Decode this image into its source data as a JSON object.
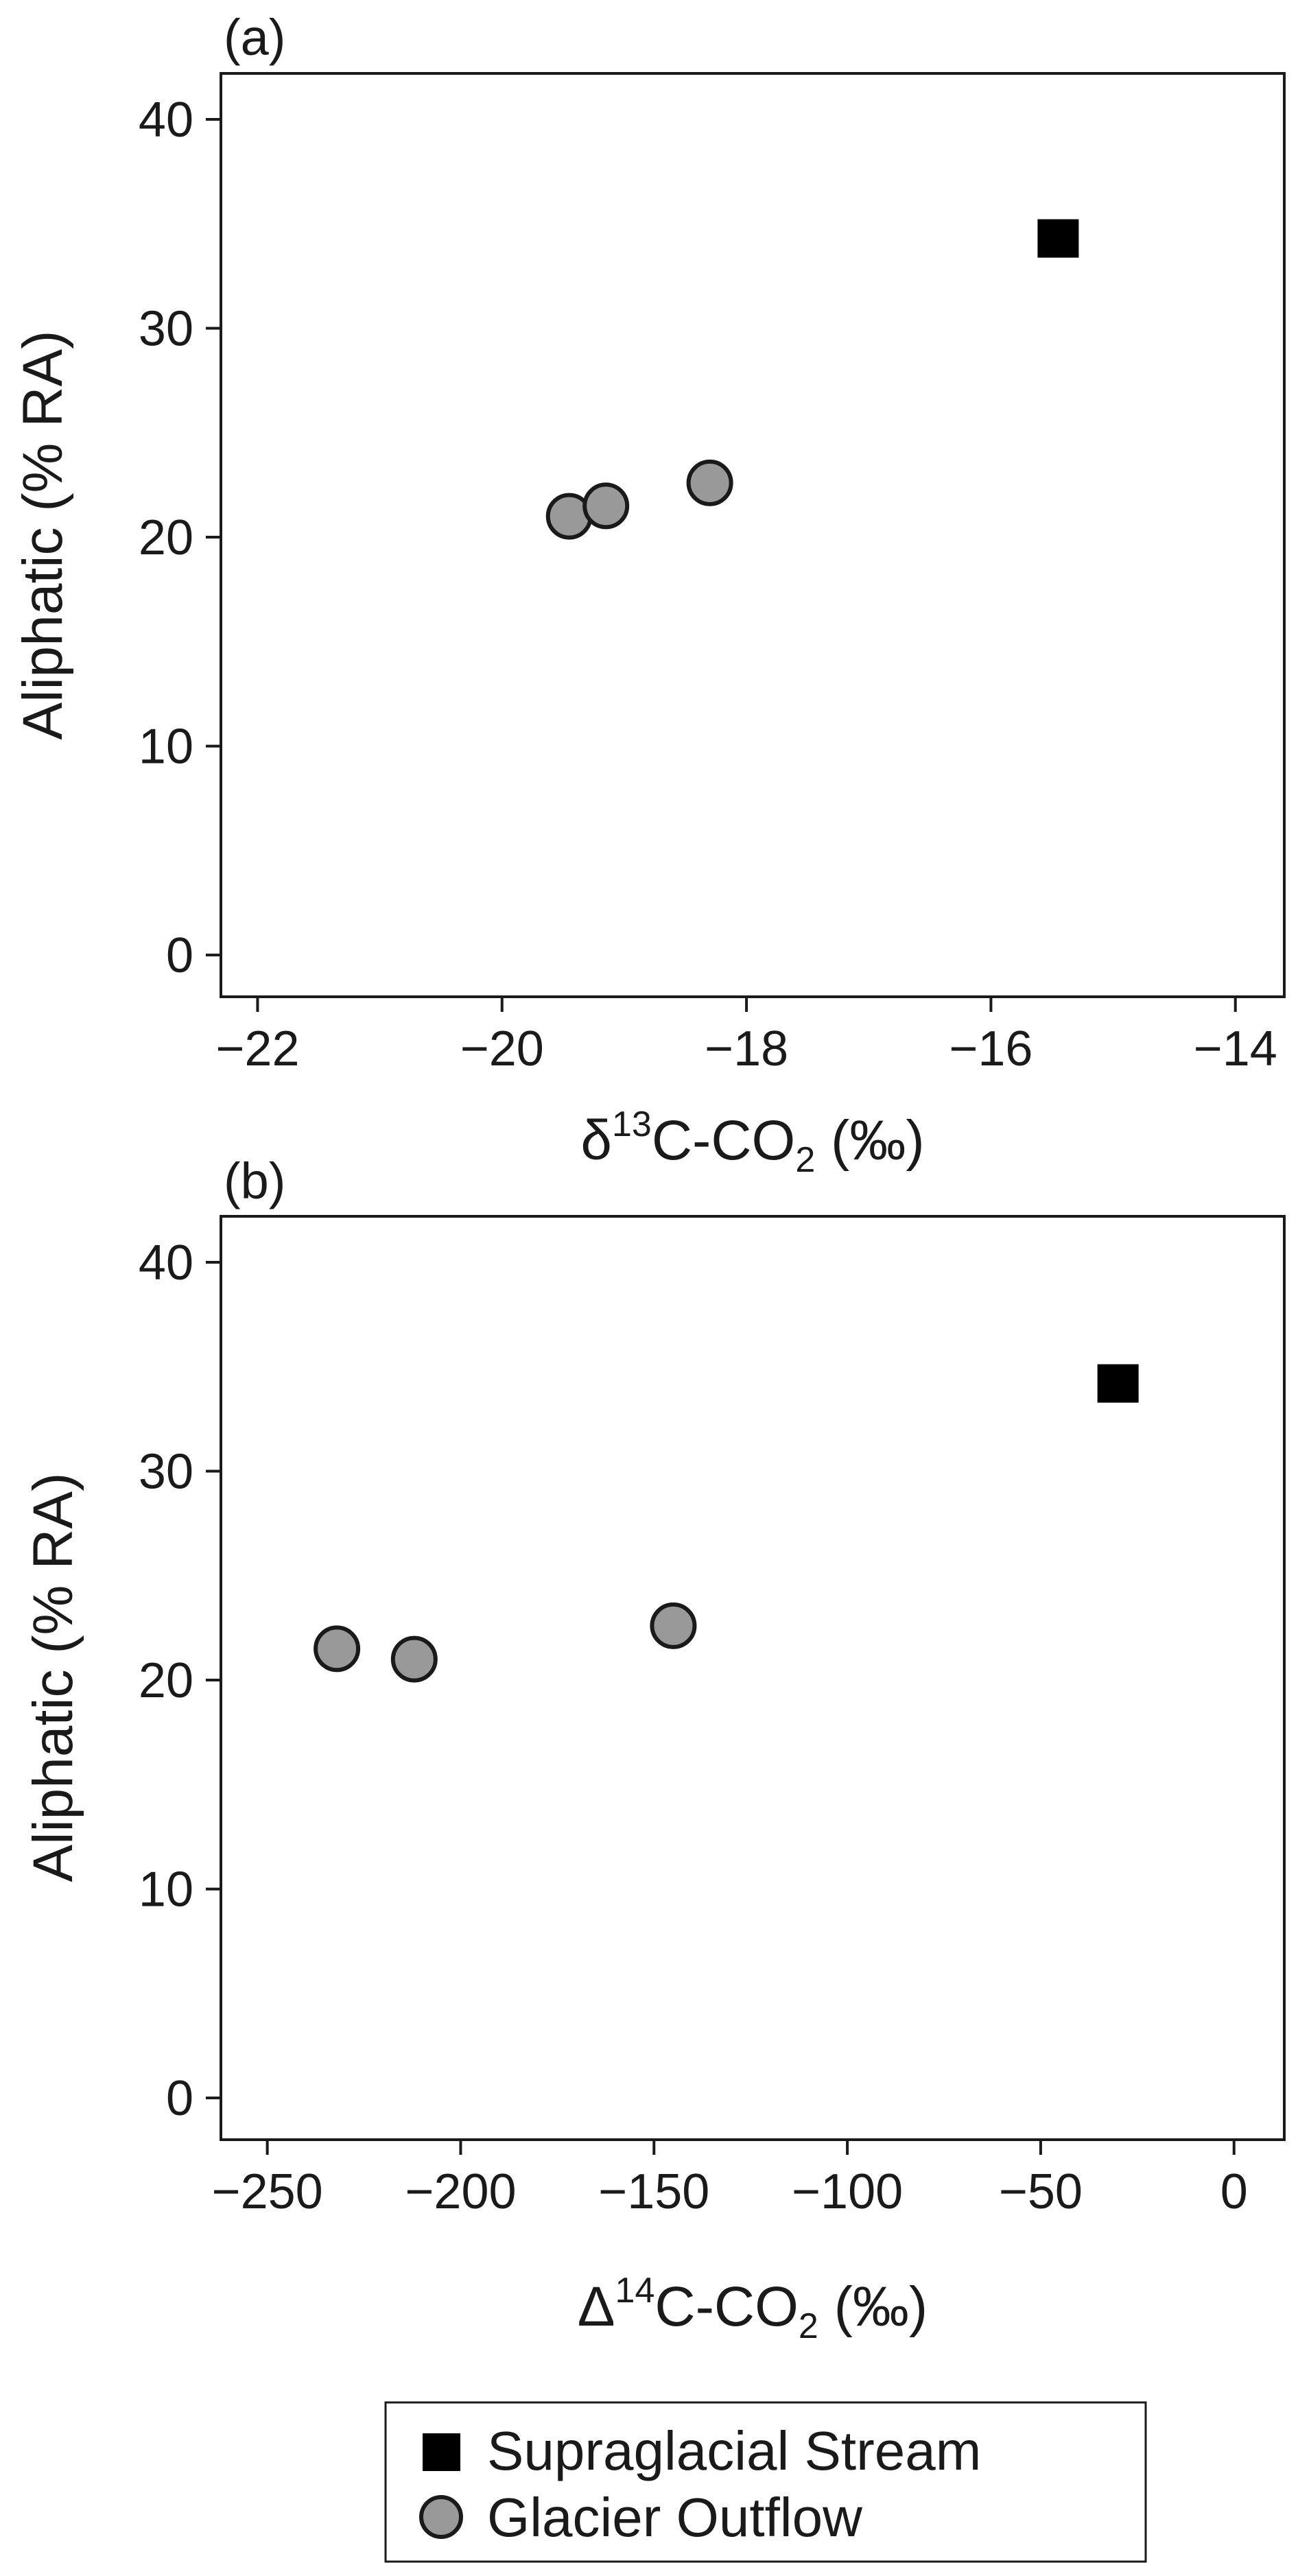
{
  "colors": {
    "supraglacial": "#000000",
    "outflow_fill": "#999999",
    "outflow_edge": "#1a1a1a",
    "axis": "#1a1a1a"
  },
  "legend": {
    "items": [
      {
        "label": "Supraglacial Stream",
        "marker": "square"
      },
      {
        "label": "Glacier Outflow",
        "marker": "circle"
      }
    ]
  },
  "chart_data": [
    {
      "type": "scatter",
      "panel_label": "(a)",
      "xlabel": "δ¹³C-CO₂ (‰)",
      "ylabel": "Aliphatic (% RA)",
      "xlim": [
        -22.3,
        -13.6
      ],
      "ylim": [
        -2,
        42.2
      ],
      "xticks": [
        -22,
        -20,
        -18,
        -16,
        -14
      ],
      "xtick_labels": [
        "−22",
        "−20",
        "−18",
        "−16",
        "−14"
      ],
      "yticks": [
        0,
        10,
        20,
        30,
        40
      ],
      "ytick_labels": [
        "0",
        "10",
        "20",
        "30",
        "40"
      ],
      "grid": false,
      "series": [
        {
          "name": "Supraglacial Stream",
          "marker": "square",
          "points": [
            {
              "x": -15.45,
              "y": 34.3
            }
          ]
        },
        {
          "name": "Glacier Outflow",
          "marker": "circle",
          "points": [
            {
              "x": -19.45,
              "y": 21.0
            },
            {
              "x": -19.15,
              "y": 21.5
            },
            {
              "x": -18.3,
              "y": 22.6
            }
          ]
        }
      ]
    },
    {
      "type": "scatter",
      "panel_label": "(b)",
      "xlabel": "Δ¹⁴C-CO₂ (‰)",
      "ylabel": "Aliphatic (% RA)",
      "xlim": [
        -262,
        13
      ],
      "ylim": [
        -2,
        42.2
      ],
      "xticks": [
        -250,
        -200,
        -150,
        -100,
        -50,
        0
      ],
      "xtick_labels": [
        "−250",
        "−200",
        "−150",
        "−100",
        "−50",
        "0"
      ],
      "yticks": [
        0,
        10,
        20,
        30,
        40
      ],
      "ytick_labels": [
        "0",
        "10",
        "20",
        "30",
        "40"
      ],
      "grid": false,
      "series": [
        {
          "name": "Supraglacial Stream",
          "marker": "square",
          "points": [
            {
              "x": -30,
              "y": 34.2
            }
          ]
        },
        {
          "name": "Glacier Outflow",
          "marker": "circle",
          "points": [
            {
              "x": -232,
              "y": 21.5
            },
            {
              "x": -212,
              "y": 21.0
            },
            {
              "x": -145,
              "y": 22.6
            }
          ]
        }
      ]
    }
  ]
}
